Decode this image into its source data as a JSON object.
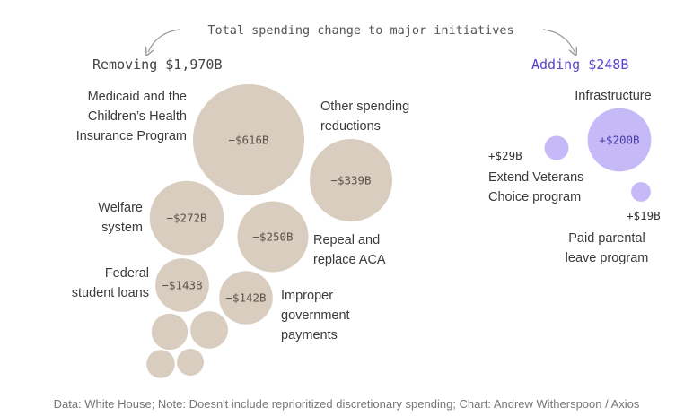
{
  "chart_data": {
    "type": "bubble",
    "title": "Total spending change to major initiatives",
    "groups": [
      {
        "name": "removing",
        "heading": "Removing $1,970B",
        "color": "#d8cdbf",
        "value_color": "#5a5347",
        "items": [
          {
            "label": [
              "Medicaid and the",
              "Children’s Health",
              "Insurance Program"
            ],
            "value": -616,
            "value_label": "−$616B"
          },
          {
            "label": [
              "Other spending",
              "reductions"
            ],
            "value": -339,
            "value_label": "−$339B"
          },
          {
            "label": [
              "Welfare",
              "system"
            ],
            "value": -272,
            "value_label": "−$272B"
          },
          {
            "label": [
              "Repeal and",
              "replace ACA"
            ],
            "value": -250,
            "value_label": "−$250B"
          },
          {
            "label": [
              "Federal",
              "student loans"
            ],
            "value": -143,
            "value_label": "−$143B"
          },
          {
            "label": [
              "Improper",
              "government",
              "payments"
            ],
            "value": -142,
            "value_label": "−$142B"
          },
          {
            "label": [],
            "value": -70,
            "value_label": ""
          },
          {
            "label": [],
            "value": -65,
            "value_label": ""
          },
          {
            "label": [],
            "value": -40,
            "value_label": ""
          },
          {
            "label": [],
            "value": -36,
            "value_label": ""
          }
        ]
      },
      {
        "name": "adding",
        "heading": "Adding $248B",
        "color": "#c5b9f7",
        "value_color": "#4b3aa6",
        "items": [
          {
            "label": [
              "Infrastructure"
            ],
            "value": 200,
            "value_label": "+$200B"
          },
          {
            "label": [
              "Extend Veterans",
              "Choice program"
            ],
            "value": 29,
            "value_label": "+$29B"
          },
          {
            "label": [
              "Paid parental",
              "leave program"
            ],
            "value": 19,
            "value_label": "+$19B"
          }
        ]
      }
    ],
    "source_note": "Data: White House; Note: Doesn't include reprioritized discretionary spending; Chart: Andrew Witherspoon / Axios"
  }
}
